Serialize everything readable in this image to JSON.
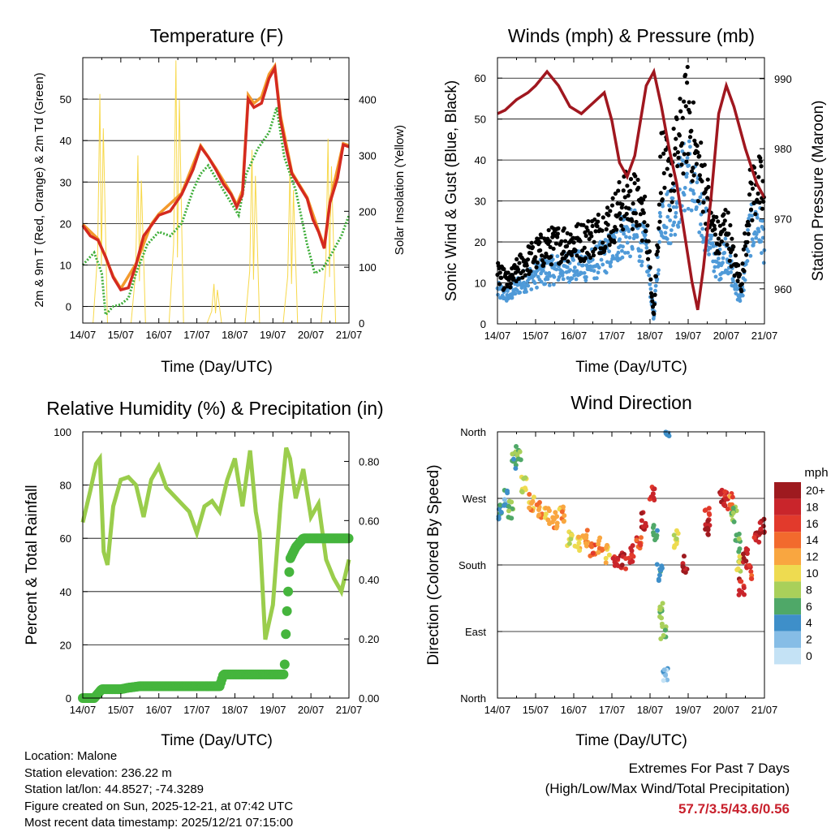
{
  "colors": {
    "temp_red": "#d42a20",
    "temp_orange": "#f39a2c",
    "dewpoint_green": "#3fae3a",
    "solar_yellow": "#f7d84a",
    "gust_black": "#000000",
    "wind_blue": "#4f9ad8",
    "pressure_maroon": "#a0171f",
    "rh_green": "#9acd4c",
    "precip_green": "#45b53d",
    "extremes_red": "#c8202c"
  },
  "x_ticks": [
    "14/07",
    "15/07",
    "16/07",
    "17/07",
    "18/07",
    "19/07",
    "20/07",
    "21/07"
  ],
  "chart_data": [
    {
      "id": "temperature",
      "type": "line",
      "title": "Temperature (F)",
      "xlabel": "Time (Day/UTC)",
      "ylabel": "2m & 9m T (Red, Orange) & 2m Td (Green)",
      "ylabel_right": "Solar Insolation (Yellow)",
      "xlim": [
        0,
        7
      ],
      "ylim": [
        -4,
        60
      ],
      "ylim_right": [
        0,
        475
      ],
      "yticks": [
        0,
        10,
        20,
        30,
        40,
        50
      ],
      "yticks_right": [
        0,
        100,
        200,
        300,
        400
      ],
      "grid": "horizontal",
      "series": [
        {
          "name": "2m T",
          "axis": "left",
          "color": "temp_red",
          "x": [
            0,
            0.2,
            0.4,
            0.6,
            0.8,
            1.0,
            1.2,
            1.4,
            1.6,
            1.8,
            2.0,
            2.3,
            2.6,
            2.9,
            3.1,
            3.3,
            3.5,
            3.7,
            3.9,
            4.05,
            4.2,
            4.35,
            4.5,
            4.7,
            4.9,
            5.05,
            5.2,
            5.35,
            5.5,
            5.7,
            5.9,
            6.05,
            6.2,
            6.35,
            6.5,
            6.7,
            6.85,
            7.0
          ],
          "values": [
            19.5,
            17,
            16,
            12,
            7,
            4,
            4.5,
            10,
            17,
            19.5,
            22,
            23,
            27,
            33,
            38.5,
            36,
            33,
            29.5,
            27,
            24,
            27,
            50,
            48,
            49,
            55,
            57.5,
            45,
            38,
            32,
            29,
            26,
            21,
            18,
            14,
            25,
            31,
            39,
            38.5
          ]
        },
        {
          "name": "9m T",
          "axis": "left",
          "color": "temp_orange",
          "x": [
            0,
            0.4,
            0.8,
            1.0,
            1.4,
            1.8,
            2.0,
            2.6,
            3.1,
            3.5,
            3.9,
            4.05,
            4.2,
            4.35,
            4.5,
            4.7,
            4.9,
            5.05,
            5.2,
            5.5,
            5.9,
            6.2,
            6.35,
            6.5,
            6.85,
            7.0
          ],
          "values": [
            19.8,
            16.3,
            7.3,
            4.3,
            10.3,
            19.8,
            22.3,
            27.3,
            38.8,
            33.3,
            27.3,
            24.5,
            28,
            51,
            49,
            50.5,
            56,
            58,
            46,
            32.3,
            26.3,
            18.3,
            14.5,
            25.3,
            39.3,
            38.8
          ]
        },
        {
          "name": "2m Td",
          "axis": "left",
          "color": "dewpoint_green",
          "x": [
            0,
            0.3,
            0.5,
            0.6,
            0.8,
            1.0,
            1.2,
            1.4,
            1.7,
            2.0,
            2.3,
            2.6,
            2.9,
            3.1,
            3.3,
            3.5,
            3.7,
            3.9,
            4.1,
            4.3,
            4.6,
            4.9,
            5.1,
            5.3,
            5.6,
            5.9,
            6.1,
            6.3,
            6.5,
            6.8,
            7.0
          ],
          "values": [
            10,
            13,
            8,
            -2,
            0,
            0.5,
            2,
            8,
            15,
            18,
            17,
            20,
            28,
            32,
            34,
            31,
            28,
            25,
            22,
            32,
            38,
            42,
            48,
            36,
            28,
            15,
            8,
            9,
            12,
            17,
            22
          ]
        },
        {
          "name": "Solar Insolation",
          "axis": "right",
          "color": "solar_yellow",
          "peaks": [
            [
              0.45,
              410
            ],
            [
              1.45,
              300
            ],
            [
              2.45,
              470
            ],
            [
              3.45,
              70
            ],
            [
              4.45,
              310
            ],
            [
              5.45,
              280
            ],
            [
              6.45,
              330
            ]
          ]
        }
      ]
    },
    {
      "id": "winds",
      "type": "scatter",
      "title": "Winds (mph) & Pressure (mb)",
      "xlabel": "Time (Day/UTC)",
      "ylabel": "Sonic Wind & Gust (Blue, Black)",
      "ylabel_right": "Station Pressure (Maroon)",
      "xlim": [
        0,
        7
      ],
      "ylim": [
        0,
        65
      ],
      "ylim_right": [
        955,
        993
      ],
      "yticks": [
        0,
        10,
        20,
        30,
        40,
        50,
        60
      ],
      "yticks_right": [
        960,
        970,
        980,
        990
      ],
      "grid": "horizontal",
      "series": [
        {
          "name": "Gust",
          "color": "gust_black",
          "x": [
            0,
            0.3,
            0.6,
            1.0,
            1.4,
            1.8,
            2.2,
            2.6,
            3.0,
            3.3,
            3.6,
            3.9,
            4.1,
            4.3,
            4.5,
            4.8,
            5.0,
            5.2,
            5.4,
            5.6,
            5.8,
            6.0,
            6.2,
            6.4,
            6.6,
            6.8,
            7.0
          ],
          "values": [
            12,
            10,
            14,
            17,
            19,
            20,
            20,
            22,
            25,
            30,
            30,
            25,
            2,
            40,
            35,
            45,
            52,
            40,
            35,
            25,
            20,
            25,
            15,
            10,
            30,
            35,
            30
          ]
        },
        {
          "name": "Sonic Wind",
          "color": "wind_blue",
          "x": [
            0,
            0.3,
            0.6,
            1.0,
            1.4,
            1.8,
            2.2,
            2.6,
            3.0,
            3.3,
            3.6,
            3.9,
            4.1,
            4.3,
            4.5,
            4.8,
            5.0,
            5.2,
            5.4,
            5.6,
            5.8,
            6.0,
            6.2,
            6.4,
            6.6,
            6.8,
            7.0
          ],
          "values": [
            8,
            7,
            10,
            12,
            13,
            14,
            14,
            15,
            18,
            22,
            22,
            18,
            1,
            28,
            26,
            33,
            38,
            30,
            26,
            18,
            14,
            18,
            10,
            6,
            22,
            25,
            20
          ]
        },
        {
          "name": "Station Pressure",
          "color": "pressure_maroon",
          "x": [
            0,
            0.2,
            0.5,
            0.8,
            1.0,
            1.3,
            1.6,
            1.9,
            2.2,
            2.5,
            2.8,
            3.0,
            3.2,
            3.4,
            3.6,
            3.9,
            4.1,
            4.3,
            4.5,
            4.7,
            4.9,
            5.1,
            5.25,
            5.4,
            5.6,
            5.8,
            6.0,
            6.2,
            6.5,
            6.8,
            7.0
          ],
          "values": [
            985,
            985.5,
            987,
            988,
            989,
            991,
            989,
            986,
            985,
            986.5,
            988,
            984,
            978,
            976,
            979,
            989,
            991,
            986,
            980,
            975,
            968,
            961,
            957,
            963,
            973,
            985,
            989,
            986,
            980,
            975,
            973
          ]
        }
      ]
    },
    {
      "id": "humidity",
      "type": "line",
      "title": "Relative Humidity (%) & Precipitation (in)",
      "xlabel": "Time (Day/UTC)",
      "ylabel": "Percent & Total Rainfall",
      "xlim": [
        0,
        7
      ],
      "ylim": [
        0,
        100
      ],
      "ylim_right": [
        0,
        0.9
      ],
      "yticks": [
        0,
        20,
        40,
        60,
        80,
        100
      ],
      "yticks_right": [
        "0.00",
        "0.20",
        "0.40",
        "0.60",
        "0.80"
      ],
      "grid": "horizontal",
      "series": [
        {
          "name": "Relative Humidity",
          "color": "rh_green",
          "x": [
            0,
            0.2,
            0.35,
            0.45,
            0.55,
            0.65,
            0.8,
            1.0,
            1.2,
            1.4,
            1.6,
            1.8,
            2.0,
            2.2,
            2.4,
            2.6,
            2.8,
            3.0,
            3.2,
            3.4,
            3.6,
            3.8,
            4.0,
            4.2,
            4.4,
            4.55,
            4.65,
            4.8,
            5.0,
            5.2,
            5.35,
            5.45,
            5.6,
            5.8,
            6.0,
            6.2,
            6.4,
            6.6,
            6.8,
            7.0
          ],
          "values": [
            66,
            78,
            88,
            90,
            55,
            50,
            72,
            82,
            83,
            80,
            68,
            82,
            87,
            79,
            76,
            73,
            70,
            62,
            72,
            74,
            70,
            82,
            90,
            72,
            93,
            70,
            62,
            22,
            35,
            73,
            94,
            90,
            75,
            86,
            68,
            73,
            52,
            45,
            40,
            52
          ]
        },
        {
          "name": "Total Precipitation",
          "color": "precip_green",
          "x": [
            0,
            0.3,
            0.5,
            1.0,
            1.2,
            1.5,
            2.0,
            2.5,
            3.0,
            3.6,
            3.7,
            4.0,
            4.5,
            5.0,
            5.3,
            5.35,
            5.45,
            5.6,
            5.8,
            6.0,
            6.5,
            7.0
          ],
          "values": [
            0.0,
            0.0,
            0.03,
            0.03,
            0.035,
            0.04,
            0.04,
            0.04,
            0.04,
            0.04,
            0.08,
            0.08,
            0.08,
            0.08,
            0.08,
            0.25,
            0.47,
            0.51,
            0.54,
            0.54,
            0.54,
            0.54
          ]
        }
      ]
    },
    {
      "id": "wind_direction",
      "type": "scatter",
      "title": "Wind Direction",
      "xlabel": "Time (Day/UTC)",
      "ylabel": "Direction (Colored By Speed)",
      "xlim": [
        0,
        7
      ],
      "ylim": [
        0,
        360
      ],
      "yticks": [
        {
          "value": 0,
          "label": "North"
        },
        {
          "value": 90,
          "label": "East"
        },
        {
          "value": 180,
          "label": "South"
        },
        {
          "value": 270,
          "label": "West"
        },
        {
          "value": 360,
          "label": "North"
        }
      ],
      "grid": "horizontal",
      "colorbar": {
        "title": "mph",
        "labels": [
          "20+",
          "18",
          "16",
          "14",
          "12",
          "10",
          "8",
          "6",
          "4",
          "2",
          "0"
        ],
        "colors": [
          "#9e1a1f",
          "#c9252b",
          "#e23a2c",
          "#f26a2d",
          "#f9a640",
          "#eedb50",
          "#a9d05a",
          "#4fa868",
          "#3e8fc9",
          "#86bde6",
          "#c4e2f5"
        ]
      },
      "series": [
        {
          "name": "Direction",
          "x": [
            0.05,
            0.2,
            0.35,
            0.45,
            0.55,
            0.7,
            0.9,
            1.1,
            1.3,
            1.5,
            1.7,
            1.9,
            2.1,
            2.3,
            2.5,
            2.7,
            2.9,
            3.1,
            3.3,
            3.5,
            3.7,
            3.85,
            4.05,
            4.15,
            4.25,
            4.3,
            4.35,
            4.4,
            4.45,
            4.7,
            4.9,
            5.5,
            5.5,
            5.9,
            6.0,
            6.1,
            6.2,
            6.3,
            6.35,
            6.4,
            6.5,
            6.6,
            6.8,
            6.95
          ],
          "values": [
            250,
            270,
            255,
            320,
            330,
            290,
            265,
            255,
            245,
            240,
            250,
            215,
            210,
            215,
            200,
            205,
            195,
            190,
            185,
            195,
            210,
            240,
            275,
            225,
            170,
            120,
            90,
            30,
            360,
            215,
            180,
            245,
            230,
            275,
            270,
            265,
            250,
            210,
            180,
            150,
            190,
            170,
            220,
            235
          ],
          "speeds": [
            6,
            5,
            8,
            7,
            8,
            10,
            13,
            14,
            12,
            14,
            13,
            10,
            12,
            13,
            15,
            14,
            12,
            18,
            19,
            18,
            17,
            20,
            18,
            6,
            6,
            9,
            8,
            3,
            4,
            10,
            20,
            19,
            20,
            20,
            19,
            15,
            8,
            7,
            10,
            19,
            20,
            17,
            19,
            20
          ]
        }
      ]
    }
  ],
  "station": {
    "location": "Location: Malone",
    "elevation": "Station elevation: 236.22 m",
    "latlon": "Station lat/lon: 44.8527; -74.3289",
    "created": "Figure created on Sun, 2025-12-21, at 07:42 UTC",
    "recent": "Most recent data timestamp: 2025/12/21 07:15:00"
  },
  "extremes": {
    "title": "Extremes For Past 7 Days",
    "subtitle": "(High/Low/Max Wind/Total Precipitation)",
    "values": "57.7/3.5/43.6/0.56"
  }
}
